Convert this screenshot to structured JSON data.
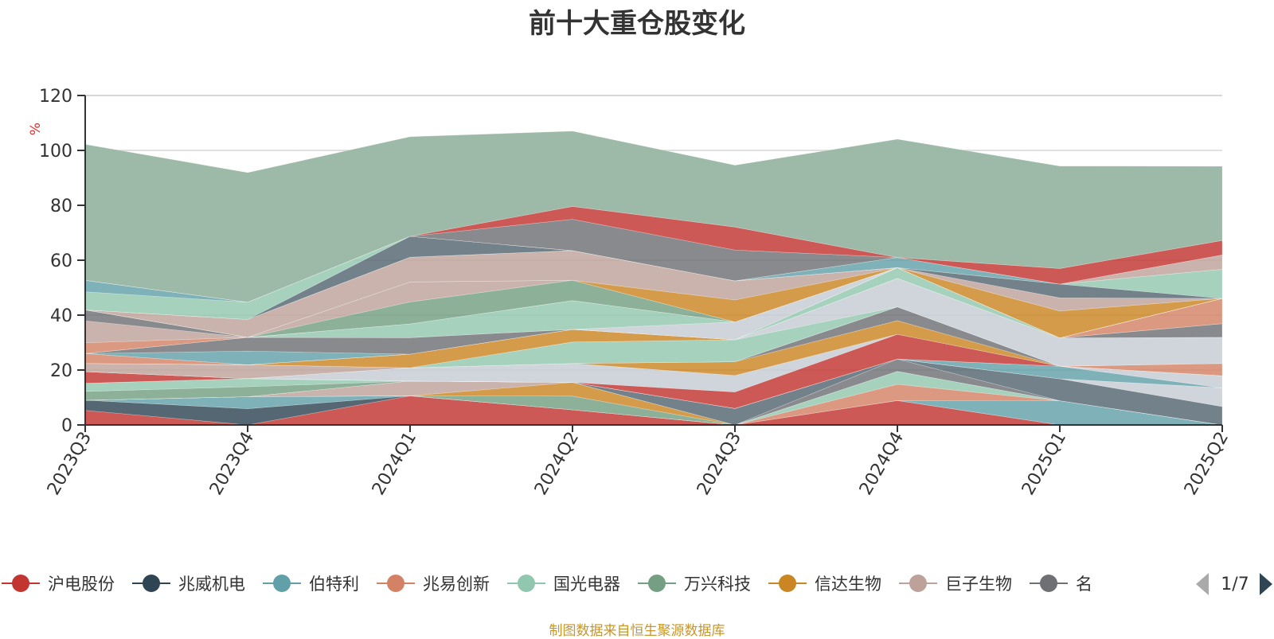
{
  "source_note": "制图数据来自恒生聚源数据库",
  "legend_page": "1/7",
  "chart_data": {
    "type": "area",
    "title": "前十大重仓股变化",
    "ylabel": "%",
    "ylim": [
      0,
      120
    ],
    "yticks": [
      0,
      20,
      40,
      60,
      80,
      100,
      120
    ],
    "grid": true,
    "legend_placement": "bottom",
    "categories": [
      "2023Q3",
      "2023Q4",
      "2024Q1",
      "2024Q2",
      "2024Q3",
      "2024Q4",
      "2025Q1",
      "2025Q2"
    ],
    "series": [
      {
        "name": "沪电股份",
        "color": "#c23531",
        "values": [
          5.3,
          0,
          10.6,
          5.5,
          0,
          8.9,
          0,
          0
        ]
      },
      {
        "name": "兆威机电",
        "color": "#2f4554",
        "values": [
          3.7,
          5.9,
          0,
          0,
          0,
          0,
          0,
          0
        ]
      },
      {
        "name": "伯特利",
        "color": "#61a0a8",
        "values": [
          0,
          4.4,
          0,
          0,
          0,
          0,
          8.8,
          0
        ]
      },
      {
        "name": "兆易创新",
        "color": "#d48265",
        "values": [
          0,
          0,
          0,
          0,
          0,
          5.9,
          0,
          0
        ]
      },
      {
        "name": "国光电器",
        "color": "#91c7ae",
        "values": [
          0,
          0,
          0,
          0,
          0,
          4.7,
          0,
          0
        ]
      },
      {
        "name": "万兴科技",
        "color": "#749f83",
        "values": [
          0,
          0,
          0,
          5.0,
          0,
          0,
          0,
          0
        ]
      },
      {
        "name": "信达生物",
        "color": "#ca8622",
        "values": [
          0,
          0,
          0,
          5.0,
          0,
          0,
          0,
          0
        ]
      },
      {
        "name": "巨子生物",
        "color": "#bda29a",
        "values": [
          0,
          0,
          5.4,
          0,
          0,
          0,
          0,
          0
        ]
      },
      {
        "name": "名",
        "color": "#6e7074",
        "values": [
          0,
          0,
          0,
          0,
          0,
          4.5,
          0,
          0
        ]
      },
      {
        "name": "",
        "color": "#546570",
        "values": [
          0,
          0,
          0,
          0,
          6.0,
          0,
          8.0,
          6.7
        ]
      },
      {
        "name": "",
        "color": "#c4ccd3",
        "values": [
          0,
          0,
          0,
          0,
          0,
          0,
          0,
          6.8
        ]
      },
      {
        "name": "",
        "color": "#749f83",
        "values": [
          3.2,
          3.6,
          0,
          0,
          0,
          0,
          0,
          0
        ]
      },
      {
        "name": "",
        "color": "#91c7ae",
        "values": [
          3.0,
          3.0,
          0,
          0,
          0,
          0,
          0,
          0
        ]
      },
      {
        "name": "",
        "color": "#61a0a8",
        "values": [
          0,
          0,
          0,
          0,
          0,
          0,
          4.6,
          0
        ]
      },
      {
        "name": "",
        "color": "#c4ccd3",
        "values": [
          0,
          0,
          0,
          0,
          0,
          0,
          0,
          4.4
        ]
      },
      {
        "name": "",
        "color": "#c23531",
        "values": [
          4.2,
          0,
          0,
          0,
          6.0,
          9.0,
          0,
          0
        ]
      },
      {
        "name": "",
        "color": "#c4ccd3",
        "values": [
          0,
          0,
          4.8,
          6.9,
          6.0,
          0,
          0,
          0
        ]
      },
      {
        "name": "",
        "color": "#ca8622",
        "values": [
          0,
          0,
          0,
          0,
          5.0,
          5.0,
          0,
          0
        ]
      },
      {
        "name": "",
        "color": "#6e7074",
        "values": [
          0,
          0,
          0,
          0,
          0,
          5.0,
          0,
          0
        ]
      },
      {
        "name": "",
        "color": "#d48265",
        "values": [
          0,
          0,
          0,
          0,
          0,
          0,
          0,
          4.5
        ]
      },
      {
        "name": "",
        "color": "#bda29a",
        "values": [
          3.0,
          5.0,
          0,
          0,
          0,
          0,
          0,
          0
        ]
      },
      {
        "name": "",
        "color": "#91c7ae",
        "values": [
          0,
          0,
          0,
          7.8,
          8.0,
          0,
          0,
          0
        ]
      },
      {
        "name": "",
        "color": "#c4ccd3",
        "values": [
          0,
          0,
          0,
          0,
          0,
          10.4,
          10.3,
          9.5
        ]
      },
      {
        "name": "",
        "color": "#ca8622",
        "values": [
          0,
          0,
          5.0,
          4.6,
          0,
          0,
          0,
          0
        ]
      },
      {
        "name": "",
        "color": "#6e7074",
        "values": [
          0,
          0,
          0,
          0,
          0,
          0,
          0,
          5.0
        ]
      },
      {
        "name": "",
        "color": "#91c7ae",
        "values": [
          0,
          0,
          0,
          0,
          0,
          3.9,
          0,
          0
        ]
      },
      {
        "name": "",
        "color": "#d48265",
        "values": [
          3.6,
          0,
          0,
          0,
          0,
          0,
          0,
          9.2
        ]
      },
      {
        "name": "",
        "color": "#61a0a8",
        "values": [
          0,
          5.0,
          0,
          0,
          0,
          0,
          0,
          0
        ]
      },
      {
        "name": "",
        "color": "#6e7074",
        "values": [
          0,
          5.0,
          6.0,
          0,
          0,
          0,
          0,
          0
        ]
      },
      {
        "name": "",
        "color": "#c4ccd3",
        "values": [
          0,
          0,
          0,
          0,
          6.5,
          0,
          0,
          0
        ]
      },
      {
        "name": "",
        "color": "#91c7ae",
        "values": [
          0,
          0,
          5.0,
          10.5,
          0,
          0,
          0,
          0
        ]
      },
      {
        "name": "",
        "color": "#d48265",
        "values": [
          3.9,
          0,
          0,
          0,
          0,
          0,
          0,
          0
        ]
      },
      {
        "name": "",
        "color": "#bda29a",
        "values": [
          8.0,
          0,
          0,
          0,
          0,
          0,
          0,
          0
        ]
      },
      {
        "name": "",
        "color": "#6e7074",
        "values": [
          4.0,
          0,
          0,
          0,
          0,
          0,
          0,
          0
        ]
      },
      {
        "name": "",
        "color": "#749f83",
        "values": [
          0,
          0,
          8.0,
          7.4,
          0,
          0,
          0,
          0
        ]
      },
      {
        "name": "",
        "color": "#bda29a",
        "values": [
          0,
          0,
          7.3,
          0,
          0,
          0,
          0,
          0
        ]
      },
      {
        "name": "",
        "color": "#ca8622",
        "values": [
          0,
          0,
          0,
          0,
          8.0,
          0,
          0,
          0
        ]
      },
      {
        "name": "",
        "color": "#bda29a",
        "values": [
          0,
          6.5,
          9.0,
          10.8,
          7.0,
          0,
          0,
          0
        ]
      },
      {
        "name": "",
        "color": "#ca8622",
        "values": [
          0,
          0,
          0,
          0,
          0,
          0,
          9.8,
          0
        ]
      },
      {
        "name": "",
        "color": "#bda29a",
        "values": [
          0,
          0,
          0,
          0,
          0,
          0,
          4.8,
          0
        ]
      },
      {
        "name": "",
        "color": "#546570",
        "values": [
          0,
          0,
          7.6,
          0,
          0,
          0,
          5.0,
          0
        ]
      },
      {
        "name": "",
        "color": "#91c7ae",
        "values": [
          6.6,
          6.3,
          0,
          0,
          0,
          0,
          0,
          10.6
        ]
      },
      {
        "name": "",
        "color": "#61a0a8",
        "values": [
          4.2,
          0,
          0,
          0,
          0,
          3.7,
          0,
          0
        ]
      },
      {
        "name": "",
        "color": "#bda29a",
        "values": [
          0,
          0,
          0,
          0,
          0,
          0,
          0,
          5.2
        ]
      },
      {
        "name": "",
        "color": "#6e7074",
        "values": [
          0,
          0,
          0,
          11.4,
          11.2,
          0,
          0,
          0
        ]
      },
      {
        "name": "",
        "color": "#c23531",
        "values": [
          0,
          0,
          0,
          4.7,
          8.4,
          0,
          5.7,
          5.3
        ]
      },
      {
        "name": "",
        "color": "#9db9a7",
        "values": [
          49.5,
          47.2,
          36.3,
          27.4,
          22.5,
          43.1,
          37.3,
          27.0
        ]
      }
    ]
  }
}
